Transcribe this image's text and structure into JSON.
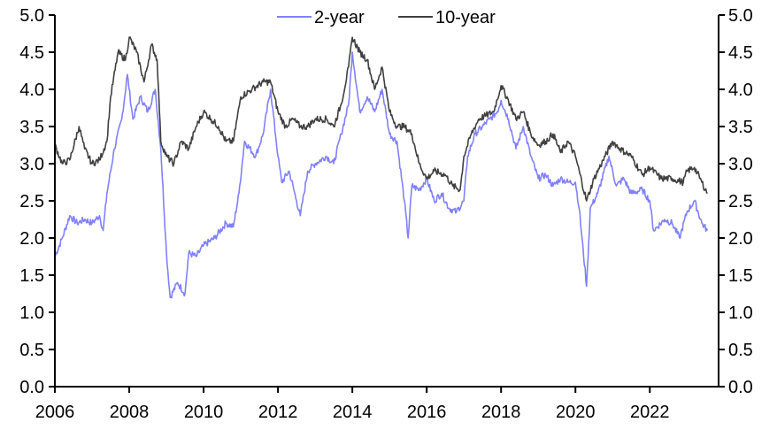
{
  "chart_data": {
    "type": "line",
    "title": "",
    "xlabel": "",
    "ylabel": "",
    "xlim": [
      2006,
      2023.85
    ],
    "ylim": [
      0,
      5
    ],
    "x_ticks": [
      "2006",
      "2008",
      "2010",
      "2012",
      "2014",
      "2016",
      "2018",
      "2020",
      "2022"
    ],
    "y_ticks_left": [
      "0.0",
      "0.5",
      "1.0",
      "1.5",
      "2.0",
      "2.5",
      "3.0",
      "3.5",
      "4.0",
      "4.5",
      "5.0"
    ],
    "y_ticks_right": [
      "0.0",
      "0.5",
      "1.0",
      "1.5",
      "2.0",
      "2.5",
      "3.0",
      "3.5",
      "4.0",
      "4.5",
      "5.0"
    ],
    "grid": false,
    "legend_position": "top-center",
    "series": [
      {
        "name": "2-year",
        "color": "#8080ff",
        "points": [
          [
            2006.0,
            1.75
          ],
          [
            2006.2,
            2.0
          ],
          [
            2006.4,
            2.3
          ],
          [
            2006.6,
            2.2
          ],
          [
            2006.8,
            2.25
          ],
          [
            2007.0,
            2.2
          ],
          [
            2007.2,
            2.3
          ],
          [
            2007.3,
            2.1
          ],
          [
            2007.4,
            2.6
          ],
          [
            2007.6,
            3.2
          ],
          [
            2007.8,
            3.6
          ],
          [
            2007.95,
            4.2
          ],
          [
            2008.1,
            3.6
          ],
          [
            2008.3,
            3.9
          ],
          [
            2008.5,
            3.7
          ],
          [
            2008.7,
            4.0
          ],
          [
            2008.85,
            3.2
          ],
          [
            2009.0,
            1.8
          ],
          [
            2009.1,
            1.2
          ],
          [
            2009.3,
            1.4
          ],
          [
            2009.5,
            1.25
          ],
          [
            2009.6,
            1.8
          ],
          [
            2009.8,
            1.75
          ],
          [
            2010.0,
            1.9
          ],
          [
            2010.3,
            2.0
          ],
          [
            2010.6,
            2.2
          ],
          [
            2010.8,
            2.15
          ],
          [
            2010.95,
            2.6
          ],
          [
            2011.1,
            3.3
          ],
          [
            2011.4,
            3.1
          ],
          [
            2011.6,
            3.4
          ],
          [
            2011.8,
            4.0
          ],
          [
            2012.0,
            3.1
          ],
          [
            2012.1,
            2.75
          ],
          [
            2012.3,
            2.9
          ],
          [
            2012.5,
            2.5
          ],
          [
            2012.6,
            2.3
          ],
          [
            2012.8,
            2.9
          ],
          [
            2013.0,
            3.0
          ],
          [
            2013.3,
            3.1
          ],
          [
            2013.5,
            3.0
          ],
          [
            2013.7,
            3.4
          ],
          [
            2013.9,
            3.8
          ],
          [
            2014.0,
            4.5
          ],
          [
            2014.2,
            3.7
          ],
          [
            2014.4,
            3.9
          ],
          [
            2014.6,
            3.7
          ],
          [
            2014.8,
            4.0
          ],
          [
            2015.0,
            3.4
          ],
          [
            2015.2,
            3.3
          ],
          [
            2015.4,
            2.5
          ],
          [
            2015.5,
            2.0
          ],
          [
            2015.6,
            2.7
          ],
          [
            2015.8,
            2.65
          ],
          [
            2016.0,
            2.8
          ],
          [
            2016.2,
            2.5
          ],
          [
            2016.4,
            2.6
          ],
          [
            2016.6,
            2.4
          ],
          [
            2016.8,
            2.35
          ],
          [
            2017.0,
            2.5
          ],
          [
            2017.1,
            3.1
          ],
          [
            2017.3,
            3.4
          ],
          [
            2017.5,
            3.5
          ],
          [
            2017.7,
            3.6
          ],
          [
            2017.9,
            3.7
          ],
          [
            2018.0,
            3.85
          ],
          [
            2018.2,
            3.6
          ],
          [
            2018.4,
            3.2
          ],
          [
            2018.6,
            3.5
          ],
          [
            2018.8,
            3.1
          ],
          [
            2019.0,
            2.8
          ],
          [
            2019.2,
            2.85
          ],
          [
            2019.4,
            2.7
          ],
          [
            2019.6,
            2.8
          ],
          [
            2019.8,
            2.75
          ],
          [
            2020.0,
            2.75
          ],
          [
            2020.1,
            2.4
          ],
          [
            2020.3,
            1.35
          ],
          [
            2020.4,
            2.4
          ],
          [
            2020.6,
            2.6
          ],
          [
            2020.9,
            3.1
          ],
          [
            2021.1,
            2.7
          ],
          [
            2021.3,
            2.8
          ],
          [
            2021.5,
            2.6
          ],
          [
            2021.8,
            2.65
          ],
          [
            2022.0,
            2.5
          ],
          [
            2022.1,
            2.1
          ],
          [
            2022.4,
            2.25
          ],
          [
            2022.6,
            2.2
          ],
          [
            2022.8,
            2.0
          ],
          [
            2023.0,
            2.35
          ],
          [
            2023.2,
            2.5
          ],
          [
            2023.4,
            2.2
          ],
          [
            2023.55,
            2.1
          ]
        ]
      },
      {
        "name": "10-year",
        "color": "#404040",
        "points": [
          [
            2006.0,
            3.25
          ],
          [
            2006.2,
            3.0
          ],
          [
            2006.4,
            3.05
          ],
          [
            2006.65,
            3.5
          ],
          [
            2006.8,
            3.2
          ],
          [
            2007.0,
            3.0
          ],
          [
            2007.2,
            3.05
          ],
          [
            2007.4,
            3.3
          ],
          [
            2007.5,
            3.9
          ],
          [
            2007.7,
            4.5
          ],
          [
            2007.9,
            4.4
          ],
          [
            2008.0,
            4.7
          ],
          [
            2008.2,
            4.5
          ],
          [
            2008.4,
            4.1
          ],
          [
            2008.6,
            4.6
          ],
          [
            2008.75,
            4.4
          ],
          [
            2008.85,
            3.3
          ],
          [
            2009.0,
            3.1
          ],
          [
            2009.2,
            3.0
          ],
          [
            2009.4,
            3.3
          ],
          [
            2009.6,
            3.2
          ],
          [
            2009.8,
            3.5
          ],
          [
            2010.0,
            3.7
          ],
          [
            2010.2,
            3.6
          ],
          [
            2010.4,
            3.5
          ],
          [
            2010.6,
            3.3
          ],
          [
            2010.8,
            3.3
          ],
          [
            2011.0,
            3.9
          ],
          [
            2011.3,
            4.0
          ],
          [
            2011.6,
            4.1
          ],
          [
            2011.8,
            4.1
          ],
          [
            2012.0,
            3.7
          ],
          [
            2012.2,
            3.5
          ],
          [
            2012.4,
            3.6
          ],
          [
            2012.6,
            3.5
          ],
          [
            2012.8,
            3.5
          ],
          [
            2013.0,
            3.6
          ],
          [
            2013.3,
            3.6
          ],
          [
            2013.5,
            3.5
          ],
          [
            2013.7,
            3.8
          ],
          [
            2013.9,
            4.3
          ],
          [
            2014.0,
            4.7
          ],
          [
            2014.2,
            4.5
          ],
          [
            2014.4,
            4.4
          ],
          [
            2014.6,
            4.0
          ],
          [
            2014.8,
            4.3
          ],
          [
            2015.0,
            3.7
          ],
          [
            2015.2,
            3.5
          ],
          [
            2015.4,
            3.5
          ],
          [
            2015.6,
            3.4
          ],
          [
            2015.8,
            3.0
          ],
          [
            2016.0,
            2.8
          ],
          [
            2016.2,
            2.9
          ],
          [
            2016.5,
            2.85
          ],
          [
            2016.7,
            2.7
          ],
          [
            2016.9,
            2.65
          ],
          [
            2017.0,
            3.1
          ],
          [
            2017.2,
            3.4
          ],
          [
            2017.4,
            3.6
          ],
          [
            2017.6,
            3.65
          ],
          [
            2017.8,
            3.7
          ],
          [
            2018.0,
            4.05
          ],
          [
            2018.2,
            3.85
          ],
          [
            2018.4,
            3.6
          ],
          [
            2018.6,
            3.7
          ],
          [
            2018.8,
            3.4
          ],
          [
            2019.0,
            3.25
          ],
          [
            2019.2,
            3.3
          ],
          [
            2019.4,
            3.4
          ],
          [
            2019.6,
            3.15
          ],
          [
            2019.8,
            3.3
          ],
          [
            2020.0,
            3.1
          ],
          [
            2020.3,
            2.5
          ],
          [
            2020.5,
            2.8
          ],
          [
            2020.8,
            3.1
          ],
          [
            2021.0,
            3.3
          ],
          [
            2021.2,
            3.2
          ],
          [
            2021.5,
            3.1
          ],
          [
            2021.8,
            2.85
          ],
          [
            2022.0,
            2.95
          ],
          [
            2022.3,
            2.8
          ],
          [
            2022.6,
            2.8
          ],
          [
            2022.9,
            2.75
          ],
          [
            2023.0,
            2.9
          ],
          [
            2023.2,
            2.95
          ],
          [
            2023.4,
            2.75
          ],
          [
            2023.55,
            2.6
          ]
        ]
      }
    ]
  }
}
